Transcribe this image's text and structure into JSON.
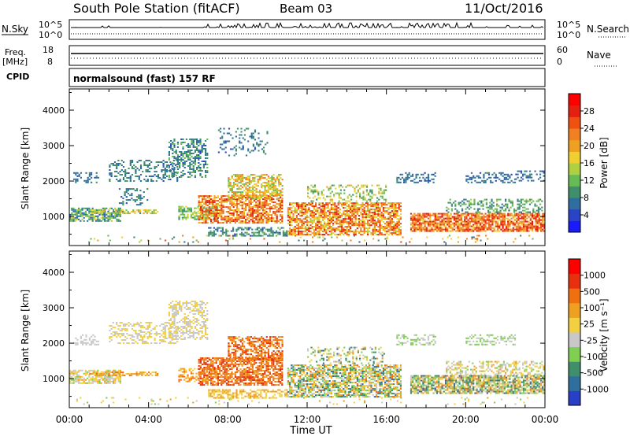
{
  "header": {
    "station": "South Pole Station (fitACF)",
    "beam": "Beam 03",
    "date": "11/Oct/2016"
  },
  "panels": {
    "nsky": {
      "label": "N.Sky",
      "ticks_left": [
        "10^5",
        "10^0"
      ],
      "ticks_right": [
        "10^5",
        "10^0"
      ],
      "right_label": "N.Search"
    },
    "freq": {
      "label_line1": "Freq.",
      "label_line2": "[MHz]",
      "ticks_left": [
        "18",
        "8"
      ],
      "ticks_right": [
        "60",
        "0"
      ],
      "right_label": "Nave"
    },
    "cpid": {
      "label": "CPID",
      "mode": "normalsound (fast) 157 RF"
    }
  },
  "chart_data": [
    {
      "type": "heatmap",
      "title": "",
      "xlabel": "Time UT",
      "ylabel": "Slant Range [km]",
      "x_ticks": [
        "00:00",
        "04:00",
        "08:00",
        "12:00",
        "16:00",
        "20:00",
        "00:00"
      ],
      "xlim_hours": [
        0,
        24
      ],
      "ylim_km": [
        180,
        4600
      ],
      "y_ticks": [
        1000,
        2000,
        3000,
        4000
      ],
      "colorbar": {
        "label": "Power [dB]",
        "ticks": [
          "4",
          "8",
          "12",
          "16",
          "20",
          "24",
          "28"
        ],
        "colors": [
          "#1a1aff",
          "#2a44c8",
          "#2f6f9f",
          "#3f8f6a",
          "#66bb55",
          "#b0d040",
          "#f0d030",
          "#f0a020",
          "#f08020",
          "#f05010",
          "#e62010",
          "#ff0000"
        ]
      },
      "bands": [
        {
          "t0": 0.0,
          "t1": 24.0,
          "r0": 250,
          "r1": 480,
          "v0": 6,
          "v1": 26,
          "density": 0.06
        },
        {
          "t0": 0.0,
          "t1": 2.6,
          "r0": 850,
          "r1": 1250,
          "v0": 4,
          "v1": 16,
          "density": 0.7
        },
        {
          "t0": 0.2,
          "t1": 1.5,
          "r0": 1950,
          "r1": 2250,
          "v0": 4,
          "v1": 8,
          "density": 0.35
        },
        {
          "t0": 1.0,
          "t1": 4.5,
          "r0": 1050,
          "r1": 1200,
          "v0": 10,
          "v1": 20,
          "density": 0.6
        },
        {
          "t0": 2.0,
          "t1": 5.5,
          "r0": 2000,
          "r1": 2600,
          "v0": 4,
          "v1": 10,
          "density": 0.35
        },
        {
          "t0": 2.5,
          "t1": 4.0,
          "r0": 1300,
          "r1": 1800,
          "v0": 4,
          "v1": 10,
          "density": 0.25
        },
        {
          "t0": 5.0,
          "t1": 7.0,
          "r0": 2100,
          "r1": 3200,
          "v0": 4,
          "v1": 12,
          "density": 0.45
        },
        {
          "t0": 5.5,
          "t1": 7.5,
          "r0": 900,
          "r1": 1300,
          "v0": 8,
          "v1": 16,
          "density": 0.5
        },
        {
          "t0": 6.5,
          "t1": 10.8,
          "r0": 800,
          "r1": 1600,
          "v0": 16,
          "v1": 30,
          "density": 0.7
        },
        {
          "t0": 8.0,
          "t1": 10.8,
          "r0": 1500,
          "r1": 2200,
          "v0": 12,
          "v1": 24,
          "density": 0.6
        },
        {
          "t0": 7.5,
          "t1": 10.0,
          "r0": 2700,
          "r1": 3500,
          "v0": 4,
          "v1": 10,
          "density": 0.2
        },
        {
          "t0": 7.0,
          "t1": 11.0,
          "r0": 450,
          "r1": 700,
          "v0": 4,
          "v1": 12,
          "density": 0.55
        },
        {
          "t0": 11.0,
          "t1": 16.8,
          "r0": 450,
          "r1": 1400,
          "v0": 14,
          "v1": 30,
          "density": 0.7
        },
        {
          "t0": 12.0,
          "t1": 16.0,
          "r0": 1400,
          "r1": 1900,
          "v0": 8,
          "v1": 20,
          "density": 0.3
        },
        {
          "t0": 16.5,
          "t1": 18.5,
          "r0": 1950,
          "r1": 2250,
          "v0": 4,
          "v1": 8,
          "density": 0.4
        },
        {
          "t0": 17.2,
          "t1": 24.0,
          "r0": 550,
          "r1": 1100,
          "v0": 16,
          "v1": 32,
          "density": 0.8
        },
        {
          "t0": 19.0,
          "t1": 24.0,
          "r0": 1100,
          "r1": 1500,
          "v0": 6,
          "v1": 14,
          "density": 0.4
        },
        {
          "t0": 20.0,
          "t1": 22.5,
          "r0": 1950,
          "r1": 2250,
          "v0": 4,
          "v1": 8,
          "density": 0.35
        },
        {
          "t0": 22.5,
          "t1": 24.0,
          "r0": 2000,
          "r1": 2300,
          "v0": 4,
          "v1": 8,
          "density": 0.3
        }
      ]
    },
    {
      "type": "heatmap",
      "title": "",
      "xlabel": "Time UT",
      "ylabel": "Slant Range [km]",
      "x_ticks": [
        "00:00",
        "04:00",
        "08:00",
        "12:00",
        "16:00",
        "20:00",
        "00:00"
      ],
      "xlim_hours": [
        0,
        24
      ],
      "ylim_km": [
        180,
        4600
      ],
      "y_ticks": [
        1000,
        2000,
        3000,
        4000
      ],
      "colorbar": {
        "label": "Velocity [m s⁻¹]",
        "ticks": [
          "1000",
          "500",
          "100",
          "25",
          "-25",
          "-100",
          "-500",
          "-1000"
        ],
        "colors": [
          "#2a3fc8",
          "#2f6f9f",
          "#3f8f6a",
          "#7fcf50",
          "#c8c8c8",
          "#f2d040",
          "#f0a020",
          "#f07010",
          "#e83010",
          "#ff0000"
        ]
      },
      "bands": [
        {
          "t0": 0.0,
          "t1": 24.0,
          "r0": 250,
          "r1": 480,
          "v0": 3,
          "v1": 6,
          "density": 0.05
        },
        {
          "t0": 0.0,
          "t1": 2.6,
          "r0": 850,
          "r1": 1250,
          "v0": 3,
          "v1": 6,
          "density": 0.7
        },
        {
          "t0": 0.2,
          "t1": 1.5,
          "r0": 1950,
          "r1": 2250,
          "v0": 4,
          "v1": 4,
          "density": 0.35
        },
        {
          "t0": 1.0,
          "t1": 4.5,
          "r0": 1050,
          "r1": 1200,
          "v0": 5,
          "v1": 7,
          "density": 0.6
        },
        {
          "t0": 2.0,
          "t1": 5.5,
          "r0": 2000,
          "r1": 2600,
          "v0": 4,
          "v1": 5,
          "density": 0.35
        },
        {
          "t0": 5.0,
          "t1": 7.0,
          "r0": 2100,
          "r1": 3200,
          "v0": 4,
          "v1": 5,
          "density": 0.45
        },
        {
          "t0": 5.5,
          "t1": 7.5,
          "r0": 900,
          "r1": 1300,
          "v0": 5,
          "v1": 7,
          "density": 0.5
        },
        {
          "t0": 6.5,
          "t1": 10.8,
          "r0": 800,
          "r1": 1600,
          "v0": 6,
          "v1": 8,
          "density": 0.7
        },
        {
          "t0": 8.0,
          "t1": 10.8,
          "r0": 1500,
          "r1": 2200,
          "v0": 6,
          "v1": 8,
          "density": 0.6
        },
        {
          "t0": 7.0,
          "t1": 11.0,
          "r0": 450,
          "r1": 700,
          "v0": 5,
          "v1": 6,
          "density": 0.55
        },
        {
          "t0": 11.0,
          "t1": 16.8,
          "r0": 450,
          "r1": 1400,
          "v0": 1,
          "v1": 7,
          "density": 0.7
        },
        {
          "t0": 12.0,
          "t1": 16.0,
          "r0": 1400,
          "r1": 1900,
          "v0": 1,
          "v1": 6,
          "density": 0.3
        },
        {
          "t0": 16.5,
          "t1": 18.5,
          "r0": 1950,
          "r1": 2250,
          "v0": 3,
          "v1": 4,
          "density": 0.4
        },
        {
          "t0": 17.2,
          "t1": 24.0,
          "r0": 550,
          "r1": 1100,
          "v0": 1,
          "v1": 7,
          "density": 0.8
        },
        {
          "t0": 19.0,
          "t1": 24.0,
          "r0": 1100,
          "r1": 1500,
          "v0": 3,
          "v1": 6,
          "density": 0.4
        },
        {
          "t0": 20.0,
          "t1": 22.5,
          "r0": 1950,
          "r1": 2250,
          "v0": 3,
          "v1": 4,
          "density": 0.35
        }
      ]
    }
  ]
}
